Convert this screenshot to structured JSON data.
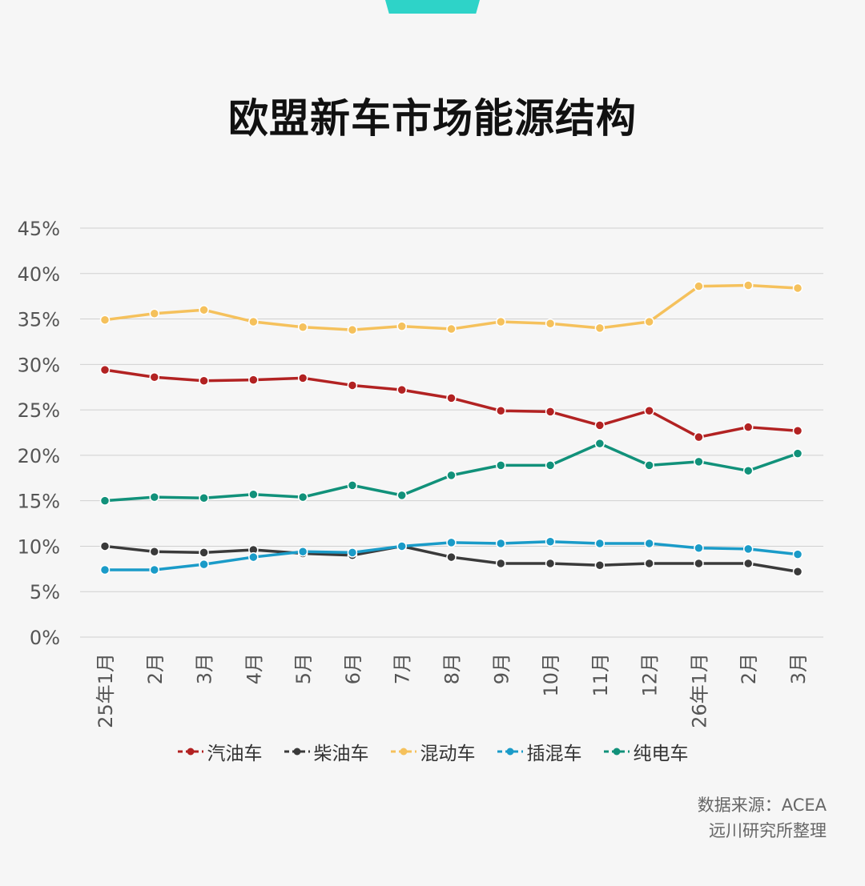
{
  "title": "欧盟新车市场能源结构",
  "source": {
    "line1": "数据来源：ACEA",
    "line2": "远川研究所整理"
  },
  "colors": {
    "accent": "#2ed3c8",
    "grid": "#d0d0d0",
    "axis_text": "#555555"
  },
  "chart_data": {
    "type": "line",
    "title": "欧盟新车市场能源结构",
    "categories": [
      "25年1月",
      "2月",
      "3月",
      "4月",
      "5月",
      "6月",
      "7月",
      "8月",
      "9月",
      "10月",
      "11月",
      "12月",
      "26年1月",
      "2月",
      "3月"
    ],
    "y_ticks": [
      "0%",
      "5%",
      "10%",
      "15%",
      "20%",
      "25%",
      "30%",
      "35%",
      "40%",
      "45%"
    ],
    "ylim": [
      0,
      45
    ],
    "y_unit": "%",
    "grid": true,
    "legend_position": "bottom",
    "series": [
      {
        "name": "汽油车",
        "color": "#b22222",
        "values": [
          29.4,
          28.6,
          28.2,
          28.3,
          28.5,
          27.7,
          27.2,
          26.3,
          24.9,
          24.8,
          23.3,
          24.9,
          22.0,
          23.1,
          22.7
        ]
      },
      {
        "name": "柴油车",
        "color": "#3a3a3a",
        "values": [
          10.0,
          9.4,
          9.3,
          9.6,
          9.2,
          9.0,
          10.0,
          8.8,
          8.1,
          8.1,
          7.9,
          8.1,
          8.1,
          8.1,
          7.2
        ]
      },
      {
        "name": "混动车",
        "color": "#f5c15c",
        "values": [
          34.9,
          35.6,
          36.0,
          34.7,
          34.1,
          33.8,
          34.2,
          33.9,
          34.7,
          34.5,
          34.0,
          34.7,
          38.6,
          38.7,
          38.4
        ]
      },
      {
        "name": "插混车",
        "color": "#1a9bc8",
        "values": [
          7.4,
          7.4,
          8.0,
          8.8,
          9.4,
          9.3,
          10.0,
          10.4,
          10.3,
          10.5,
          10.3,
          10.3,
          9.8,
          9.7,
          9.1
        ]
      },
      {
        "name": "纯电车",
        "color": "#11917a",
        "values": [
          15.0,
          15.4,
          15.3,
          15.7,
          15.4,
          16.7,
          15.6,
          17.8,
          18.9,
          18.9,
          21.3,
          18.9,
          19.3,
          18.3,
          20.2
        ]
      }
    ]
  }
}
